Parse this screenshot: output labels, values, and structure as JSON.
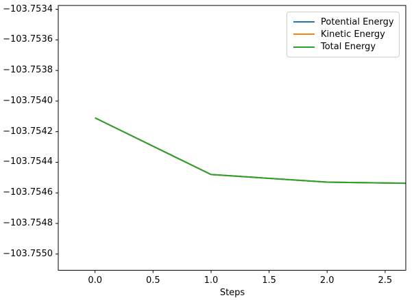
{
  "figure": {
    "background": "#ffffff",
    "spine_color": "#000000",
    "tick_color": "#000000",
    "text_color": "#000000",
    "legend_border_color": "#cccccc"
  },
  "chart_data": {
    "type": "line",
    "title": "",
    "xlabel": "Steps",
    "ylabel": "",
    "grid": false,
    "x": [
      0,
      1,
      2,
      3
    ],
    "series": [
      {
        "name": "Potential Energy",
        "color": "#1f77b4",
        "values": [
          -103.75411,
          -103.75448,
          -103.75453,
          -103.75454
        ]
      },
      {
        "name": "Kinetic Energy",
        "color": "#ff7f0e",
        "values": [
          -103.75411,
          -103.75448,
          -103.75453,
          -103.75454
        ]
      },
      {
        "name": "Total Energy",
        "color": "#2ca02c",
        "values": [
          -103.75411,
          -103.75448,
          -103.75453,
          -103.75454
        ]
      }
    ],
    "xlim": [
      -0.317,
      2.678
    ],
    "ylim": [
      -103.755106,
      -103.753375
    ],
    "xticks": [
      0.0,
      0.5,
      1.0,
      1.5,
      2.0,
      2.5
    ],
    "xtick_labels": [
      "0.0",
      "0.5",
      "1.0",
      "1.5",
      "2.0",
      "2.5"
    ],
    "yticks": [
      -103.7534,
      -103.7536,
      -103.7538,
      -103.754,
      -103.7542,
      -103.7544,
      -103.7546,
      -103.7548,
      -103.755
    ],
    "ytick_labels": [
      "−103.7534",
      "−103.7536",
      "−103.7538",
      "−103.7540",
      "−103.7542",
      "−103.7544",
      "−103.7546",
      "−103.7548",
      "−103.7550"
    ],
    "legend": {
      "position": "upper right",
      "entries": [
        {
          "label": "Potential Energy",
          "color": "#1f77b4"
        },
        {
          "label": "Kinetic Energy",
          "color": "#ff7f0e"
        },
        {
          "label": "Total Energy",
          "color": "#2ca02c"
        }
      ]
    }
  }
}
